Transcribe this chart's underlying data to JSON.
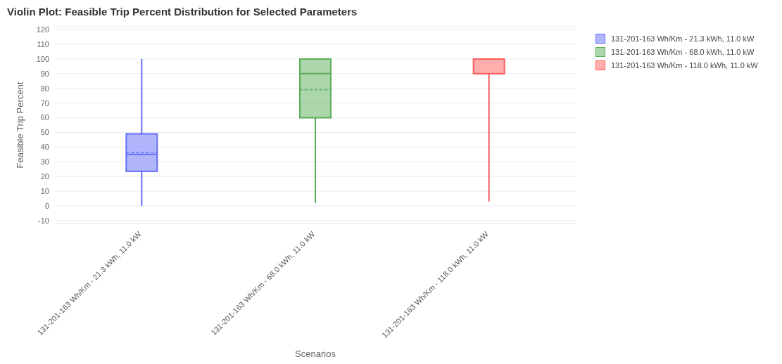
{
  "chart_data": {
    "type": "box",
    "title": "Violin Plot: Feasible Trip Percent Distribution for Selected Parameters",
    "xlabel": "Scenarios",
    "ylabel": "Feasible Trip Percent",
    "categories": [
      "131-201-163 Wh/Km - 21.3 kWh, 11.0 kW",
      "131-201-163 Wh/Km - 68.0 kWh, 11.0 kW",
      "131-201-163 Wh/Km - 118.0 kWh, 11.0 kW"
    ],
    "series": [
      {
        "name": "131-201-163 Wh/Km - 21.3 kWh, 11.0 kW",
        "color": "#636efa",
        "boxes": [
          {
            "low": 0,
            "q1": 23.5,
            "median": 35,
            "q3": 49,
            "high": 100,
            "mean": 36.5
          },
          null,
          null
        ]
      },
      {
        "name": "131-201-163 Wh/Km - 68.0 kWh, 11.0 kW",
        "color": "#5aad5a",
        "boxes": [
          null,
          {
            "low": 2,
            "q1": 60,
            "median": 90,
            "q3": 100,
            "high": 100,
            "mean": 79
          },
          null
        ]
      },
      {
        "name": "131-201-163 Wh/Km - 118.0 kWh, 11.0 kW",
        "color": "#ff5c5c",
        "boxes": [
          null,
          null,
          {
            "low": 3,
            "q1": 90,
            "median": 100,
            "q3": 100,
            "high": 100
          }
        ]
      }
    ],
    "ylim": [
      -12,
      122
    ],
    "yticks": [
      -10,
      0,
      10,
      20,
      30,
      40,
      50,
      60,
      70,
      80,
      90,
      100,
      110,
      120
    ],
    "grid": "y",
    "legend": "top right"
  }
}
